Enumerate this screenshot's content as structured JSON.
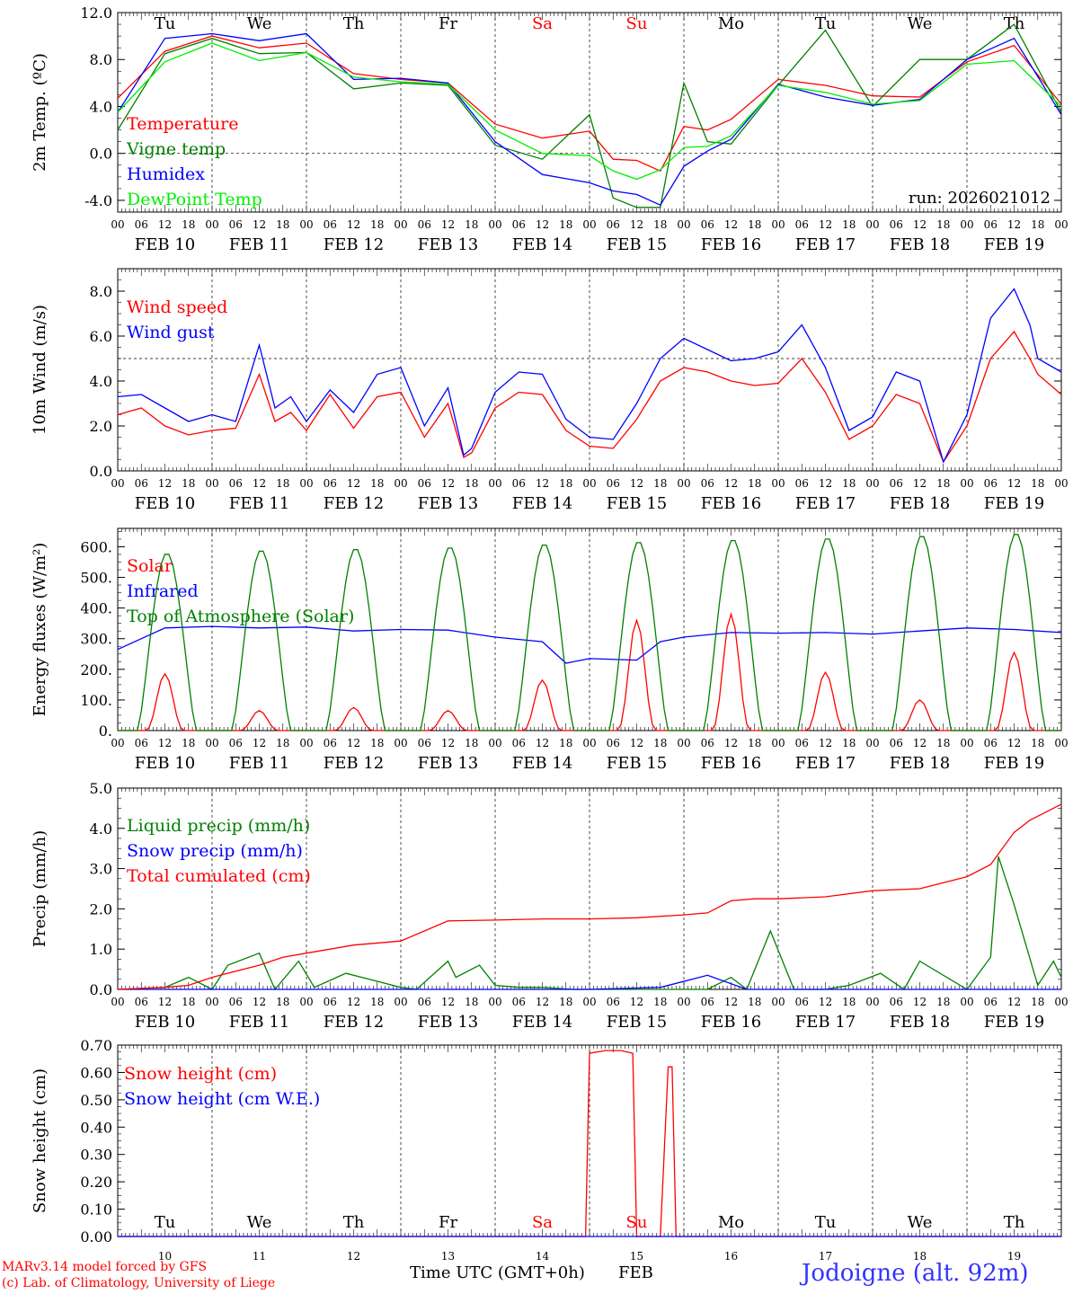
{
  "page": {
    "station": "Jodoigne (alt. 92m)",
    "credit_model": "MARv3.14 model forced by GFS",
    "credit_lab": "(c) Lab. of Climatology, University of Liege",
    "run": "run: 2026021012",
    "time_axis_label": "Time UTC (GMT+0h)",
    "month": "FEB",
    "colors": {
      "red": "#ff0000",
      "green": "#008000",
      "blue": "#0000ff",
      "lightgreen": "#00ee00",
      "weekend": "#ff0000"
    }
  },
  "days": [
    {
      "dow": "Tu",
      "date": "FEB 10",
      "num": "10",
      "weekend": false
    },
    {
      "dow": "We",
      "date": "FEB 11",
      "num": "11",
      "weekend": false
    },
    {
      "dow": "Th",
      "date": "FEB 12",
      "num": "12",
      "weekend": false
    },
    {
      "dow": "Fr",
      "date": "FEB 13",
      "num": "13",
      "weekend": false
    },
    {
      "dow": "Sa",
      "date": "FEB 14",
      "num": "14",
      "weekend": true
    },
    {
      "dow": "Su",
      "date": "FEB 15",
      "num": "15",
      "weekend": true
    },
    {
      "dow": "Mo",
      "date": "FEB 16",
      "num": "16",
      "weekend": false
    },
    {
      "dow": "Tu",
      "date": "FEB 17",
      "num": "17",
      "weekend": false
    },
    {
      "dow": "We",
      "date": "FEB 18",
      "num": "18",
      "weekend": false
    },
    {
      "dow": "Th",
      "date": "FEB 19",
      "num": "19",
      "weekend": false
    }
  ],
  "hour_ticks": [
    "00",
    "06",
    "12",
    "18"
  ],
  "chart_data": [
    {
      "id": "temp",
      "type": "line",
      "ylabel": "2m Temp. (ºC)",
      "ylim": [
        -5.0,
        12.0
      ],
      "yticks": [
        "-4.0",
        "0.0",
        "4.0",
        "8.0",
        "12.0"
      ],
      "ytick_values": [
        -4,
        0,
        4,
        8,
        12
      ],
      "hline": 0,
      "x_unit": "hours since FEB 10 00 UTC",
      "series": [
        {
          "name": "Temperature",
          "color": "#ff0000",
          "x": [
            0,
            12,
            24,
            36,
            48,
            60,
            72,
            84,
            96,
            108,
            120,
            126,
            132,
            138,
            144,
            150,
            156,
            168,
            180,
            192,
            204,
            216,
            228,
            240
          ],
          "values": [
            4.7,
            8.7,
            10.0,
            9.0,
            9.4,
            6.8,
            6.3,
            6.0,
            2.5,
            1.3,
            1.9,
            -0.5,
            -0.6,
            -1.5,
            2.3,
            2.0,
            2.9,
            6.3,
            5.8,
            4.9,
            4.8,
            7.8,
            9.2,
            4.2
          ]
        },
        {
          "name": "Vigne temp",
          "color": "#008000",
          "x": [
            0,
            12,
            24,
            36,
            48,
            60,
            72,
            84,
            96,
            108,
            120,
            126,
            132,
            138,
            144,
            150,
            156,
            168,
            180,
            192,
            204,
            216,
            228,
            240
          ],
          "values": [
            2.0,
            8.5,
            9.8,
            8.5,
            8.6,
            5.5,
            6.0,
            5.8,
            0.7,
            -0.5,
            3.3,
            -3.8,
            -4.6,
            -4.6,
            6.0,
            1.0,
            0.8,
            5.8,
            10.5,
            4.0,
            8.0,
            8.0,
            11.0,
            3.5
          ]
        },
        {
          "name": "Humidex",
          "color": "#0000ff",
          "x": [
            0,
            12,
            24,
            36,
            48,
            60,
            72,
            84,
            96,
            108,
            120,
            126,
            132,
            138,
            144,
            150,
            156,
            168,
            180,
            192,
            204,
            216,
            228,
            240
          ],
          "values": [
            3.5,
            9.8,
            10.2,
            9.6,
            10.2,
            6.3,
            6.4,
            6.0,
            1.0,
            -1.8,
            -2.5,
            -3.2,
            -3.5,
            -4.4,
            -1.1,
            0.2,
            1.2,
            5.9,
            4.8,
            4.1,
            4.6,
            8.0,
            9.8,
            3.3
          ]
        },
        {
          "name": "DewPoint Temp",
          "color": "#00ee00",
          "x": [
            0,
            12,
            24,
            36,
            48,
            60,
            72,
            84,
            96,
            108,
            120,
            126,
            132,
            138,
            144,
            150,
            156,
            168,
            180,
            192,
            204,
            216,
            228,
            240
          ],
          "values": [
            3.5,
            7.8,
            9.4,
            7.9,
            8.6,
            6.5,
            6.1,
            5.9,
            2.0,
            0.0,
            -0.2,
            -1.5,
            -2.2,
            -1.4,
            0.5,
            0.6,
            1.5,
            5.8,
            5.2,
            4.2,
            4.5,
            7.6,
            7.9,
            4.0
          ]
        }
      ]
    },
    {
      "id": "wind",
      "type": "line",
      "ylabel": "10m Wind (m/s)",
      "ylim": [
        0.0,
        9.0
      ],
      "yticks": [
        "0.0",
        "2.0",
        "4.0",
        "6.0",
        "8.0"
      ],
      "ytick_values": [
        0,
        2,
        4,
        6,
        8
      ],
      "hline": 5,
      "series": [
        {
          "name": "Wind speed",
          "color": "#ff0000",
          "x": [
            0,
            6,
            12,
            18,
            24,
            30,
            36,
            40,
            44,
            48,
            54,
            60,
            66,
            72,
            78,
            84,
            88,
            90,
            96,
            102,
            108,
            114,
            120,
            126,
            132,
            138,
            144,
            150,
            156,
            162,
            168,
            174,
            180,
            186,
            192,
            198,
            204,
            210,
            216,
            222,
            228,
            232,
            234,
            240
          ],
          "values": [
            2.5,
            2.8,
            2.0,
            1.6,
            1.8,
            1.9,
            4.3,
            2.2,
            2.6,
            1.8,
            3.4,
            1.9,
            3.3,
            3.5,
            1.5,
            3.0,
            0.6,
            0.8,
            2.8,
            3.5,
            3.4,
            1.8,
            1.1,
            1.0,
            2.3,
            4.0,
            4.6,
            4.4,
            4.0,
            3.8,
            3.9,
            5.0,
            3.5,
            1.4,
            2.0,
            3.4,
            3.0,
            0.4,
            2.0,
            5.0,
            6.2,
            5.0,
            4.3,
            3.4
          ]
        },
        {
          "name": "Wind gust",
          "color": "#0000ff",
          "x": [
            0,
            6,
            12,
            18,
            24,
            30,
            36,
            40,
            44,
            48,
            54,
            60,
            66,
            72,
            78,
            84,
            88,
            90,
            96,
            102,
            108,
            114,
            120,
            126,
            132,
            138,
            144,
            150,
            156,
            162,
            168,
            174,
            180,
            186,
            192,
            198,
            204,
            210,
            216,
            222,
            228,
            232,
            234,
            240
          ],
          "values": [
            3.3,
            3.4,
            2.8,
            2.2,
            2.5,
            2.2,
            5.6,
            2.8,
            3.3,
            2.2,
            3.6,
            2.6,
            4.3,
            4.6,
            2.0,
            3.7,
            0.7,
            1.0,
            3.5,
            4.4,
            4.3,
            2.3,
            1.5,
            1.4,
            3.0,
            5.0,
            5.9,
            5.4,
            4.9,
            5.0,
            5.3,
            6.5,
            4.6,
            1.8,
            2.4,
            4.4,
            4.0,
            0.4,
            2.5,
            6.8,
            8.1,
            6.5,
            5.0,
            4.4
          ]
        }
      ]
    },
    {
      "id": "energy",
      "type": "line",
      "ylabel": "Energy fluxes (W/m²)",
      "ylim": [
        0,
        660
      ],
      "yticks": [
        "0.",
        "100.",
        "200.",
        "300.",
        "400.",
        "500.",
        "600."
      ],
      "ytick_values": [
        0,
        100,
        200,
        300,
        400,
        500,
        600
      ],
      "series": [
        {
          "name": "Solar",
          "color": "#ff0000",
          "day_peaks": [
            185,
            65,
            75,
            65,
            165,
            360,
            380,
            190,
            100,
            255
          ]
        },
        {
          "name": "Infrared",
          "color": "#0000ff",
          "x": [
            0,
            12,
            24,
            36,
            48,
            60,
            72,
            84,
            96,
            108,
            114,
            120,
            132,
            138,
            144,
            156,
            168,
            180,
            192,
            204,
            216,
            228,
            240
          ],
          "values": [
            265,
            335,
            340,
            335,
            338,
            325,
            330,
            328,
            305,
            290,
            220,
            235,
            230,
            290,
            305,
            320,
            318,
            320,
            315,
            325,
            335,
            330,
            320
          ]
        },
        {
          "name": "Top of Atmosphere (Solar)",
          "color": "#008000",
          "day_peaks": [
            580,
            590,
            595,
            600,
            610,
            618,
            625,
            630,
            638,
            645
          ]
        }
      ]
    },
    {
      "id": "precip",
      "type": "line",
      "ylabel": "Precip (mm/h)",
      "ylim": [
        0.0,
        5.0
      ],
      "yticks": [
        "0.0",
        "1.0",
        "2.0",
        "3.0",
        "4.0",
        "5.0"
      ],
      "ytick_values": [
        0,
        1,
        2,
        3,
        4,
        5
      ],
      "series": [
        {
          "name": "Liquid precip (mm/h)",
          "color": "#008000",
          "x": [
            0,
            12,
            18,
            24,
            28,
            36,
            40,
            46,
            50,
            58,
            66,
            72,
            76,
            84,
            86,
            92,
            96,
            102,
            108,
            116,
            126,
            138,
            150,
            156,
            160,
            166,
            172,
            180,
            186,
            194,
            200,
            204,
            216,
            222,
            224,
            228,
            234,
            238,
            240
          ],
          "values": [
            0.0,
            0.05,
            0.3,
            0.0,
            0.6,
            0.9,
            0.0,
            0.7,
            0.05,
            0.4,
            0.2,
            0.05,
            0.0,
            0.7,
            0.3,
            0.6,
            0.1,
            0.05,
            0.05,
            0.0,
            0.0,
            0.0,
            0.0,
            0.3,
            0.0,
            1.45,
            0.0,
            0.0,
            0.1,
            0.4,
            0.0,
            0.7,
            0.0,
            0.8,
            3.3,
            2.1,
            0.1,
            0.7,
            0.3
          ]
        },
        {
          "name": "Snow precip (mm/h)",
          "color": "#0000ff",
          "x": [
            0,
            120,
            138,
            150,
            160,
            240
          ],
          "values": [
            0,
            0,
            0.05,
            0.35,
            0,
            0
          ]
        },
        {
          "name": "Total cumulated (cm)",
          "color": "#ff0000",
          "x": [
            0,
            12,
            18,
            24,
            36,
            42,
            48,
            60,
            72,
            84,
            96,
            108,
            120,
            132,
            144,
            150,
            156,
            162,
            168,
            180,
            192,
            204,
            216,
            222,
            228,
            232,
            240
          ],
          "values": [
            0.0,
            0.05,
            0.1,
            0.3,
            0.6,
            0.8,
            0.9,
            1.1,
            1.2,
            1.7,
            1.72,
            1.75,
            1.75,
            1.78,
            1.85,
            1.9,
            2.2,
            2.25,
            2.25,
            2.3,
            2.45,
            2.5,
            2.8,
            3.1,
            3.9,
            4.2,
            4.6
          ]
        }
      ]
    },
    {
      "id": "snow",
      "type": "line",
      "ylabel": "Snow height (cm)",
      "ylim": [
        0.0,
        0.7
      ],
      "yticks": [
        "0.00",
        "0.10",
        "0.20",
        "0.30",
        "0.40",
        "0.50",
        "0.60",
        "0.70"
      ],
      "ytick_values": [
        0,
        0.1,
        0.2,
        0.3,
        0.4,
        0.5,
        0.6,
        0.7
      ],
      "series": [
        {
          "name": "Snow height (cm)",
          "color": "#ff0000",
          "x": [
            0,
            119,
            120,
            124,
            128,
            131,
            132,
            138,
            140,
            141,
            142,
            240
          ],
          "values": [
            0,
            0,
            0.67,
            0.68,
            0.68,
            0.67,
            0,
            0,
            0.62,
            0.62,
            0,
            0
          ]
        },
        {
          "name": "Snow height (cm W.E.)",
          "color": "#0000ff",
          "x": [
            0,
            240
          ],
          "values": [
            0,
            0
          ]
        }
      ]
    }
  ]
}
